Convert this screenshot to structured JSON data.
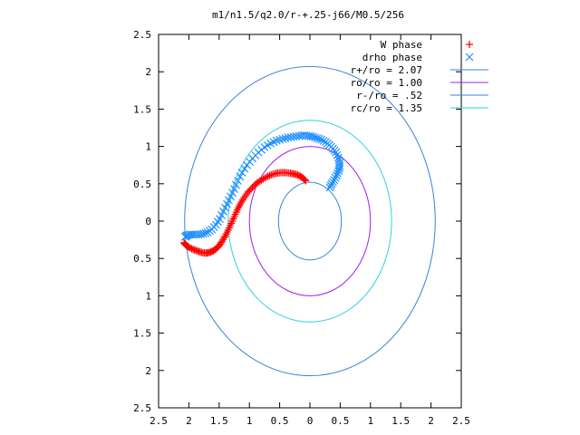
{
  "chart_data": {
    "type": "scatter",
    "title": "m1/n1.5/q2.0/r-+.25-j66/M0.5/256",
    "xlabel": "",
    "ylabel": "",
    "xlim": [
      -2.5,
      2.5
    ],
    "ylim": [
      -2.5,
      2.5
    ],
    "aspect": "equal",
    "grid": false,
    "legend_position": "top-right",
    "x_tick_values": [
      -2.5,
      -2,
      -1.5,
      -1,
      -0.5,
      0,
      0.5,
      1,
      1.5,
      2,
      2.5
    ],
    "x_tick_labels": [
      "2.5",
      "2",
      "1.5",
      "1",
      "0.5",
      "0",
      "0.5",
      "1",
      "1.5",
      "2",
      "2.5"
    ],
    "y_tick_values": [
      2.5,
      2,
      1.5,
      1,
      0.5,
      0,
      -0.5,
      -1,
      -1.5,
      -2,
      -2.5
    ],
    "y_tick_labels": [
      "2.5",
      "2",
      "1.5",
      "1",
      "0.5",
      "0",
      "0.5",
      "1",
      "1.5",
      "2",
      "2.5"
    ],
    "series": [
      {
        "name": "W phase",
        "kind": "points",
        "marker": "plus",
        "color": "#ff0000",
        "points": [
          [
            -0.07,
            0.54
          ],
          [
            -0.12,
            0.58
          ],
          [
            -0.18,
            0.61
          ],
          [
            -0.25,
            0.63
          ],
          [
            -0.32,
            0.64
          ],
          [
            -0.4,
            0.65
          ],
          [
            -0.48,
            0.65
          ],
          [
            -0.56,
            0.64
          ],
          [
            -0.64,
            0.62
          ],
          [
            -0.72,
            0.59
          ],
          [
            -0.8,
            0.55
          ],
          [
            -0.88,
            0.51
          ],
          [
            -0.95,
            0.45
          ],
          [
            -1.02,
            0.39
          ],
          [
            -1.09,
            0.31
          ],
          [
            -1.15,
            0.23
          ],
          [
            -1.2,
            0.15
          ],
          [
            -1.25,
            0.06
          ],
          [
            -1.3,
            -0.03
          ],
          [
            -1.35,
            -0.12
          ],
          [
            -1.4,
            -0.2
          ],
          [
            -1.45,
            -0.27
          ],
          [
            -1.5,
            -0.33
          ],
          [
            -1.55,
            -0.37
          ],
          [
            -1.6,
            -0.4
          ],
          [
            -1.66,
            -0.42
          ],
          [
            -1.72,
            -0.43
          ],
          [
            -1.79,
            -0.42
          ],
          [
            -1.86,
            -0.4
          ],
          [
            -1.93,
            -0.38
          ],
          [
            -2.0,
            -0.35
          ],
          [
            -2.05,
            -0.32
          ],
          [
            -2.08,
            -0.29
          ]
        ]
      },
      {
        "name": "drho phase",
        "kind": "points",
        "marker": "cross",
        "color": "#1e90ff",
        "points": [
          [
            0.33,
            0.45
          ],
          [
            0.36,
            0.5
          ],
          [
            0.4,
            0.55
          ],
          [
            0.44,
            0.61
          ],
          [
            0.47,
            0.67
          ],
          [
            0.49,
            0.72
          ],
          [
            0.49,
            0.78
          ],
          [
            0.47,
            0.85
          ],
          [
            0.43,
            0.92
          ],
          [
            0.38,
            0.97
          ],
          [
            0.32,
            1.02
          ],
          [
            0.26,
            1.06
          ],
          [
            0.19,
            1.09
          ],
          [
            0.12,
            1.11
          ],
          [
            0.05,
            1.13
          ],
          [
            -0.02,
            1.14
          ],
          [
            -0.1,
            1.15
          ],
          [
            -0.18,
            1.14
          ],
          [
            -0.27,
            1.13
          ],
          [
            -0.36,
            1.12
          ],
          [
            -0.45,
            1.1
          ],
          [
            -0.55,
            1.08
          ],
          [
            -0.65,
            1.04
          ],
          [
            -0.75,
            0.99
          ],
          [
            -0.85,
            0.92
          ],
          [
            -0.95,
            0.84
          ],
          [
            -1.04,
            0.75
          ],
          [
            -1.12,
            0.65
          ],
          [
            -1.19,
            0.54
          ],
          [
            -1.25,
            0.43
          ],
          [
            -1.31,
            0.33
          ],
          [
            -1.37,
            0.23
          ],
          [
            -1.43,
            0.13
          ],
          [
            -1.49,
            0.03
          ],
          [
            -1.55,
            -0.05
          ],
          [
            -1.62,
            -0.11
          ],
          [
            -1.69,
            -0.15
          ],
          [
            -1.76,
            -0.17
          ],
          [
            -1.84,
            -0.18
          ],
          [
            -1.92,
            -0.18
          ],
          [
            -1.98,
            -0.18
          ],
          [
            -2.03,
            -0.19
          ],
          [
            -2.06,
            -0.21
          ]
        ]
      },
      {
        "name": "r+/ro = 2.07",
        "kind": "circle",
        "radius": 2.07,
        "color": "#3a83d9"
      },
      {
        "name": "ro/ro = 1.00",
        "kind": "circle",
        "radius": 1.0,
        "color": "#a020f0"
      },
      {
        "name": "r-/ro = .52",
        "kind": "circle",
        "radius": 0.52,
        "color": "#3a83d9"
      },
      {
        "name": "rc/ro = 1.35",
        "kind": "circle",
        "radius": 1.35,
        "color": "#2fd3e0"
      }
    ]
  }
}
